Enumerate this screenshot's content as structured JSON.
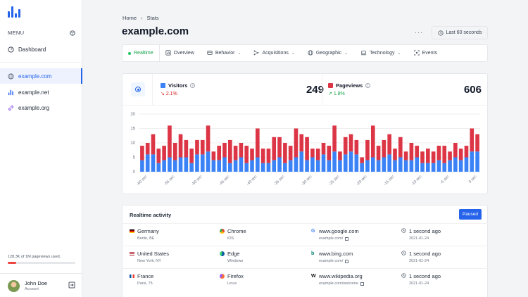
{
  "sidebar": {
    "menu_label": "MENU",
    "items": [
      {
        "label": "Dashboard",
        "icon": "dashboard-icon"
      },
      {
        "label": "example.com",
        "icon": "globe-icon",
        "active": true
      },
      {
        "label": "example.net",
        "icon": "bar-chart-icon"
      },
      {
        "label": "example.org",
        "icon": "link-icon"
      }
    ],
    "usage_text": "128.3K of 1M pageviews used.",
    "usage_fraction": 0.13,
    "user_name": "John Doe",
    "user_sub": "Account"
  },
  "header": {
    "breadcrumb_home": "Home",
    "breadcrumb_current": "Stats",
    "title": "example.com",
    "more": "···",
    "range_label": "Last 60 seconds"
  },
  "tabs": [
    {
      "label": "Realtime",
      "active": true
    },
    {
      "label": "Overview"
    },
    {
      "label": "Behavior"
    },
    {
      "label": "Acquisitions"
    },
    {
      "label": "Geographic"
    },
    {
      "label": "Technology"
    },
    {
      "label": "Events"
    }
  ],
  "metrics": {
    "visitors": {
      "label": "Visitors",
      "delta": "2.1%",
      "value": "249",
      "color": "#3b82f6"
    },
    "pageviews": {
      "label": "Pageviews",
      "delta": "1.8%",
      "value": "606",
      "color": "#dc3545"
    }
  },
  "chart_data": {
    "type": "bar",
    "stacked": true,
    "ylim": [
      0,
      20
    ],
    "y_ticks": [
      "0",
      "5",
      "10",
      "15",
      "20"
    ],
    "x_tick_labels": [
      "-60 sec",
      "-55 sec",
      "-50 sec",
      "-45 sec",
      "-40 sec",
      "-35 sec",
      "-30 sec",
      "-25 sec",
      "-20 sec",
      "-15 sec",
      "-10 sec",
      "-5 sec",
      "0 sec"
    ],
    "series": [
      {
        "name": "Visitors",
        "color": "#3b82f6",
        "values": [
          4,
          6,
          6,
          3,
          4,
          5,
          4,
          5,
          5,
          3,
          6,
          6,
          7,
          4,
          4,
          5,
          3,
          4,
          5,
          3,
          4,
          5,
          3,
          3,
          4,
          5,
          3,
          4,
          5,
          7,
          4,
          5,
          4,
          6,
          4,
          7,
          4,
          6,
          7,
          6,
          3,
          4,
          5,
          4,
          5,
          6,
          4,
          5,
          4,
          4,
          5,
          3,
          3,
          3,
          4,
          3,
          4,
          5,
          4,
          5,
          7,
          7
        ]
      },
      {
        "name": "Pageviews",
        "color": "#dc3545",
        "values": [
          5,
          4,
          7,
          5,
          5,
          11,
          6,
          8,
          6,
          5,
          5,
          5,
          9,
          3,
          5,
          5,
          8,
          5,
          5,
          6,
          4,
          10,
          5,
          5,
          8,
          7,
          7,
          5,
          10,
          6,
          8,
          3,
          4,
          4,
          5,
          9,
          3,
          6,
          6,
          5,
          2,
          7,
          11,
          5,
          6,
          7,
          4,
          7,
          3,
          6,
          4,
          4,
          5,
          4,
          5,
          6,
          3,
          5,
          4,
          4,
          8,
          6
        ]
      }
    ]
  },
  "realtime": {
    "title": "Realtime activity",
    "paused_label": "Paused",
    "rows": [
      {
        "country": "Germany",
        "city": "Berlin, BE",
        "country_flag": "germany-flag-icon",
        "browser": "Chrome",
        "os": "iOS",
        "browser_icon": "chrome-icon",
        "referrer": "www.google.com",
        "referrer_path": "example.com/",
        "referrer_icon": "google-icon",
        "time": "1 second ago",
        "date": "2021-01-24"
      },
      {
        "country": "United States",
        "city": "New York, NY",
        "country_flag": "usa-flag-icon",
        "browser": "Edge",
        "os": "Windows",
        "browser_icon": "edge-icon",
        "referrer": "www.bing.com",
        "referrer_path": "example.com/",
        "referrer_icon": "bing-icon",
        "time": "1 second ago",
        "date": "2021-01-24"
      },
      {
        "country": "France",
        "city": "Paris, 75",
        "country_flag": "france-flag-icon",
        "browser": "Firefox",
        "os": "Linux",
        "browser_icon": "firefox-icon",
        "referrer": "www.wikipedia.org",
        "referrer_path": "example.com/welcome",
        "referrer_icon": "wikipedia-icon",
        "time": "1 second ago",
        "date": "2021-01-24"
      }
    ]
  }
}
